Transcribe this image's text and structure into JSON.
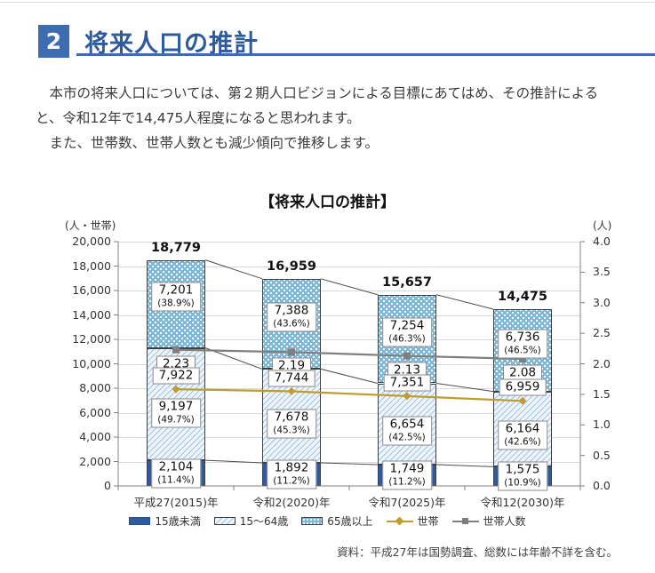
{
  "page_header": {
    "section_number": "2",
    "title": "将来人口の推計"
  },
  "intro": {
    "paragraph1": "　本市の将来人口については、第２期人口ビジョンによる目標にあてはめ、その推計によると、令和12年で14,475人程度になると思われます。",
    "paragraph2": "　また、世帯数、世帯人数とも減少傾向で推移します。"
  },
  "chart_data": {
    "type": "bar",
    "subtype": "stacked-bars-with-lines",
    "title": "【将来人口の推計】",
    "grid": true,
    "legend_position": "bottom",
    "left_axis": {
      "unit": "(人・世帯)",
      "min": 0,
      "max": 20000,
      "step": 2000
    },
    "right_axis": {
      "unit": "(人)",
      "min": 0,
      "max": 4.0,
      "step": 0.5
    },
    "categories": [
      "平成27(2015)年",
      "令和2(2020)年",
      "令和7(2025)年",
      "令和12(2030)年"
    ],
    "total_labels": [
      "18,779",
      "16,959",
      "15,657",
      "14,475"
    ],
    "bar_series": [
      {
        "name": "15歳未満",
        "values": [
          2104,
          1892,
          1749,
          1575
        ],
        "labels": [
          "2,104",
          "1,892",
          "1,749",
          "1,575"
        ],
        "pct_labels": [
          "(11.4%)",
          "(11.2%)",
          "(11.2%)",
          "(10.9%)"
        ],
        "pattern": "solid",
        "color": "#2e5b9e"
      },
      {
        "name": "15〜64歳",
        "values": [
          9197,
          7678,
          6654,
          6164
        ],
        "labels": [
          "9,197",
          "7,678",
          "6,654",
          "6,164"
        ],
        "pct_labels": [
          "(49.7%)",
          "(45.3%)",
          "(42.5%)",
          "(42.6%)"
        ],
        "pattern": "hatch",
        "color": "#a5c7e2"
      },
      {
        "name": "65歳以上",
        "values": [
          7201,
          7388,
          7254,
          6736
        ],
        "labels": [
          "7,201",
          "7,388",
          "7,254",
          "6,736"
        ],
        "pct_labels": [
          "(38.9%)",
          "(43.6%)",
          "(46.3%)",
          "(46.5%)"
        ],
        "pattern": "dots",
        "color": "#7cb8dc"
      }
    ],
    "line_series": [
      {
        "name": "世帯",
        "axis": "left",
        "values": [
          7922,
          7744,
          7351,
          6959
        ],
        "labels": [
          "7,922",
          "7,744",
          "7,351",
          "6,959"
        ],
        "color": "#bf9b30",
        "marker": "diamond"
      },
      {
        "name": "世帯人数",
        "axis": "right",
        "values": [
          2.23,
          2.19,
          2.13,
          2.08
        ],
        "labels": [
          "2.23",
          "2.19",
          "2.13",
          "2.08"
        ],
        "color": "#7f7f7f",
        "marker": "square"
      }
    ],
    "source_note": "資料：平成27年は国勢調査、総数には年齢不詳を含む。"
  },
  "colors": {
    "accent_blue": "#3e6cb3",
    "title_blue": "#2d5b9c",
    "bar_dark_blue": "#2e5b9e",
    "elderly_dots_blue": "#7cb8dc",
    "hatch_line_blue": "#a5c7e2",
    "households_line": "#bf9b30",
    "household_size_line": "#7f7f7f",
    "gridline": "#d9d9d9"
  }
}
